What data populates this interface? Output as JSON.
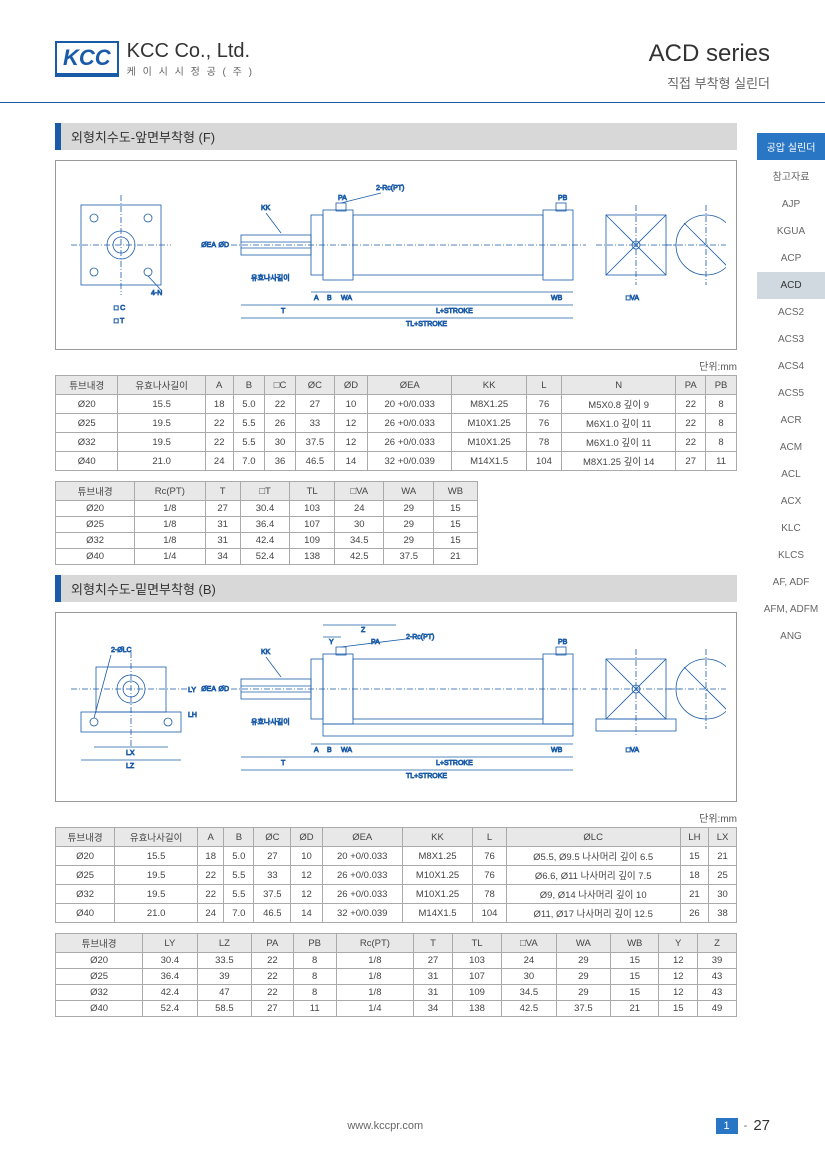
{
  "header": {
    "logo": "KCC",
    "company": "KCC Co., Ltd.",
    "company_sub": "케 이 시 시 정 공 ( 주 )",
    "series": "ACD series",
    "series_sub": "직접 부착형 실린더"
  },
  "section1": {
    "title": "외형치수도-앞면부착형 (F)",
    "unit": "단위:mm",
    "table1": {
      "headers": [
        "튜브내경",
        "유효나사길이",
        "A",
        "B",
        "□C",
        "ØC",
        "ØD",
        "ØEA",
        "KK",
        "L",
        "N",
        "PA",
        "PB"
      ],
      "rows": [
        [
          "Ø20",
          "15.5",
          "18",
          "5.0",
          "22",
          "27",
          "10",
          "20 +0/0.033",
          "M8X1.25",
          "76",
          "M5X0.8 깊이 9",
          "22",
          "8"
        ],
        [
          "Ø25",
          "19.5",
          "22",
          "5.5",
          "26",
          "33",
          "12",
          "26 +0/0.033",
          "M10X1.25",
          "76",
          "M6X1.0 깊이 11",
          "22",
          "8"
        ],
        [
          "Ø32",
          "19.5",
          "22",
          "5.5",
          "30",
          "37.5",
          "12",
          "26 +0/0.033",
          "M10X1.25",
          "78",
          "M6X1.0 깊이 11",
          "22",
          "8"
        ],
        [
          "Ø40",
          "21.0",
          "24",
          "7.0",
          "36",
          "46.5",
          "14",
          "32 +0/0.039",
          "M14X1.5",
          "104",
          "M8X1.25 깊이 14",
          "27",
          "11"
        ]
      ]
    },
    "table2": {
      "headers": [
        "튜브내경",
        "Rc(PT)",
        "T",
        "□T",
        "TL",
        "□VA",
        "WA",
        "WB"
      ],
      "rows": [
        [
          "Ø20",
          "1/8",
          "27",
          "30.4",
          "103",
          "24",
          "29",
          "15"
        ],
        [
          "Ø25",
          "1/8",
          "31",
          "36.4",
          "107",
          "30",
          "29",
          "15"
        ],
        [
          "Ø32",
          "1/8",
          "31",
          "42.4",
          "109",
          "34.5",
          "29",
          "15"
        ],
        [
          "Ø40",
          "1/4",
          "34",
          "52.4",
          "138",
          "42.5",
          "37.5",
          "21"
        ]
      ]
    }
  },
  "section2": {
    "title": "외형치수도-밑면부착형 (B)",
    "unit": "단위:mm",
    "table1": {
      "headers": [
        "튜브내경",
        "유효나사길이",
        "A",
        "B",
        "ØC",
        "ØD",
        "ØEA",
        "KK",
        "L",
        "ØLC",
        "LH",
        "LX"
      ],
      "rows": [
        [
          "Ø20",
          "15.5",
          "18",
          "5.0",
          "27",
          "10",
          "20 +0/0.033",
          "M8X1.25",
          "76",
          "Ø5.5, Ø9.5 나사머리 깊이 6.5",
          "15",
          "21"
        ],
        [
          "Ø25",
          "19.5",
          "22",
          "5.5",
          "33",
          "12",
          "26 +0/0.033",
          "M10X1.25",
          "76",
          "Ø6.6, Ø11 나사머리 깊이 7.5",
          "18",
          "25"
        ],
        [
          "Ø32",
          "19.5",
          "22",
          "5.5",
          "37.5",
          "12",
          "26 +0/0.033",
          "M10X1.25",
          "78",
          "Ø9, Ø14 나사머리 깊이 10",
          "21",
          "30"
        ],
        [
          "Ø40",
          "21.0",
          "24",
          "7.0",
          "46.5",
          "14",
          "32 +0/0.039",
          "M14X1.5",
          "104",
          "Ø11, Ø17 나사머리 깊이 12.5",
          "26",
          "38"
        ]
      ]
    },
    "table2": {
      "headers": [
        "튜브내경",
        "LY",
        "LZ",
        "PA",
        "PB",
        "Rc(PT)",
        "T",
        "TL",
        "□VA",
        "WA",
        "WB",
        "Y",
        "Z"
      ],
      "rows": [
        [
          "Ø20",
          "30.4",
          "33.5",
          "22",
          "8",
          "1/8",
          "27",
          "103",
          "24",
          "29",
          "15",
          "12",
          "39"
        ],
        [
          "Ø25",
          "36.4",
          "39",
          "22",
          "8",
          "1/8",
          "31",
          "107",
          "30",
          "29",
          "15",
          "12",
          "43"
        ],
        [
          "Ø32",
          "42.4",
          "47",
          "22",
          "8",
          "1/8",
          "31",
          "109",
          "34.5",
          "29",
          "15",
          "12",
          "43"
        ],
        [
          "Ø40",
          "52.4",
          "58.5",
          "27",
          "11",
          "1/4",
          "34",
          "138",
          "42.5",
          "37.5",
          "21",
          "15",
          "49"
        ]
      ]
    }
  },
  "nav": {
    "header": "공압 실린더",
    "items": [
      "참고자료",
      "AJP",
      "KGUA",
      "ACP",
      "ACD",
      "ACS2",
      "ACS3",
      "ACS4",
      "ACS5",
      "ACR",
      "ACM",
      "ACL",
      "ACX",
      "KLC",
      "KLCS",
      "AF, ADF",
      "AFM, ADFM",
      "ANG"
    ],
    "active_index": 4
  },
  "footer": {
    "url": "www.kccpr.com",
    "page_block": "1",
    "page_sep": "-",
    "page_num": "27"
  },
  "diagram_labels": {
    "d1": {
      "kk": "KK",
      "ea": "ØEA",
      "d": "ØD",
      "c": "□ C",
      "t": "□ T",
      "n4": "4-N",
      "a": "A",
      "b": "B",
      "wa": "WA",
      "t2": "T",
      "rc": "2-Rc(PT)",
      "pa": "PA",
      "ls": "L+STROKE",
      "tls": "TL+STROKE",
      "pb": "PB",
      "wb": "WB",
      "va": "□VA",
      "oc": "ØC",
      "note": "유효나사길이"
    },
    "d2": {
      "lc": "2-ØLC",
      "ly": "LY",
      "lh": "LH",
      "lx": "LX",
      "lz": "LZ",
      "kk": "KK",
      "ea": "ØEA",
      "d": "ØD",
      "a": "A",
      "b": "B",
      "wa": "WA",
      "t": "T",
      "z": "Z",
      "y": "Y",
      "pa": "PA",
      "rc": "2-Rc(PT)",
      "ls": "L+STROKE",
      "tls": "TL+STROKE",
      "pb": "PB",
      "wb": "WB",
      "va": "□VA",
      "oc": "ØC",
      "note": "유효나사길이"
    }
  }
}
